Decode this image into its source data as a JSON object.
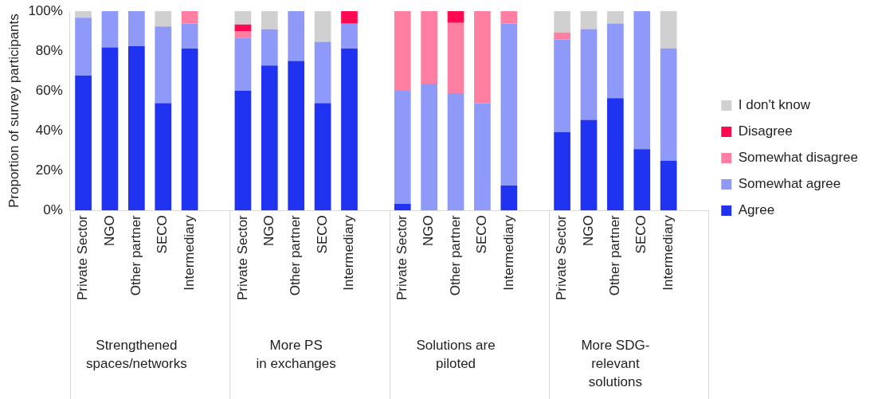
{
  "chart_data": {
    "type": "bar",
    "stacked": true,
    "ylabel": "Proportion of survey participants",
    "categories": [
      "Private Sector",
      "NGO",
      "Other partner",
      "SECO",
      "Intermediary",
      null,
      "Private Sector",
      "NGO",
      "Other partner",
      "SECO",
      "Intermediary",
      null,
      "Private Sector",
      "NGO",
      "Other partner",
      "SECO",
      "Intermediary",
      null,
      "Private Sector",
      "NGO",
      "Other partner",
      "SECO",
      "Intermediary",
      null
    ],
    "series": [
      {
        "name": "Agree",
        "color": "#1f33f0",
        "values": [
          67.7,
          81.8,
          82.4,
          53.8,
          81.2,
          null,
          60,
          72.7,
          75,
          53.8,
          81.2,
          null,
          3.3,
          0,
          0,
          0,
          12.5,
          null,
          39.3,
          45.5,
          56.3,
          30.8,
          25,
          null
        ]
      },
      {
        "name": "Somewhat agree",
        "color": "#8f99f7",
        "values": [
          29,
          18.2,
          17.6,
          38.5,
          12.5,
          null,
          26.7,
          18.2,
          25,
          30.8,
          12.5,
          null,
          56.7,
          63.6,
          58.8,
          53.8,
          81.2,
          null,
          46.4,
          45.5,
          37.5,
          69.2,
          56.3,
          null
        ]
      },
      {
        "name": "Somewhat disagree",
        "color": "#ff7fa3",
        "values": [
          0,
          0,
          0,
          0,
          6.3,
          null,
          3.3,
          0,
          0,
          0,
          0,
          null,
          40,
          36.4,
          35.3,
          46.2,
          6.3,
          null,
          3.6,
          0,
          0,
          0,
          0,
          null
        ]
      },
      {
        "name": "Disagree",
        "color": "#ff0a50",
        "values": [
          0,
          0,
          0,
          0,
          0,
          null,
          3.3,
          0,
          0,
          0,
          6.3,
          null,
          0,
          0,
          5.9,
          0,
          0,
          null,
          0,
          0,
          0,
          0,
          0,
          null
        ]
      },
      {
        "name": "I don't know",
        "color": "#d0d0d0",
        "values": [
          3.3,
          0,
          0,
          7.7,
          0,
          null,
          6.7,
          9.1,
          0,
          15.4,
          0,
          null,
          0,
          0,
          0,
          0,
          0,
          null,
          10.7,
          9,
          6.2,
          0,
          18.7,
          null
        ]
      }
    ],
    "ylim": [
      0,
      100
    ],
    "yticks": [
      {
        "value": 0,
        "label": "0%"
      },
      {
        "value": 20,
        "label": "20%"
      },
      {
        "value": 40,
        "label": "40%"
      },
      {
        "value": 60,
        "label": "60%"
      },
      {
        "value": 80,
        "label": "80%"
      },
      {
        "value": 100,
        "label": "100%"
      }
    ],
    "grid": false,
    "legend": "right",
    "annotations": [
      "Strengthened\nspaces/networks",
      "More PS\nin exchanges",
      "Solutions are\npiloted",
      "More SDG-\nrelevant\nsolutions"
    ]
  }
}
